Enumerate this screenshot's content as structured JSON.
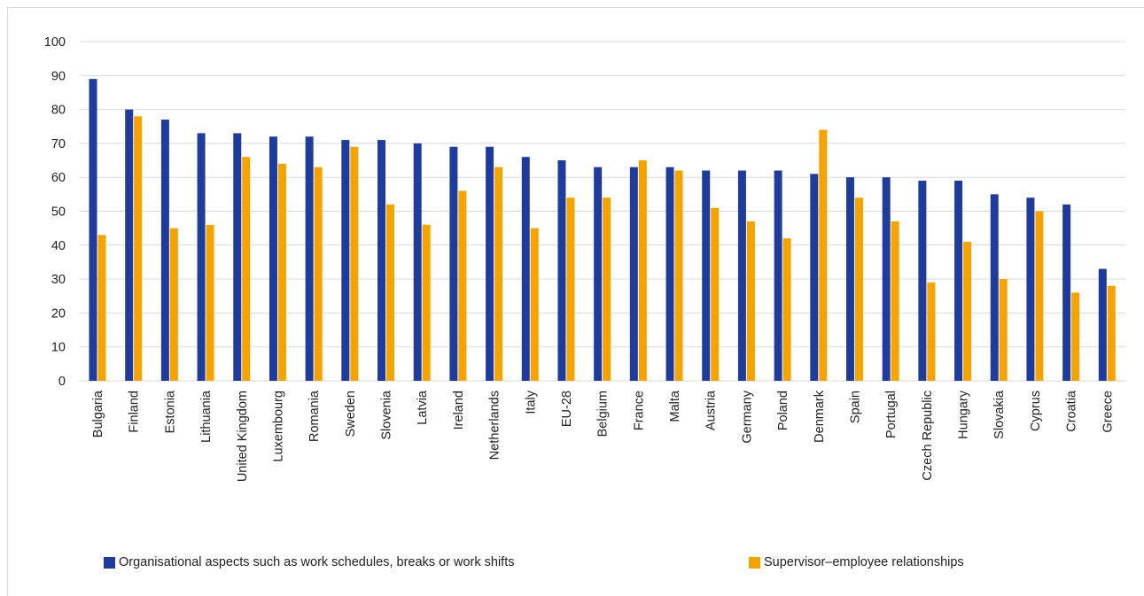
{
  "colors": {
    "series0": "#1f3b9c",
    "series1": "#f5a300",
    "grid": "#d9d9d9",
    "axis_text": "#222222"
  },
  "chart_data": {
    "type": "bar",
    "title": "",
    "xlabel": "",
    "ylabel": "",
    "ylim": [
      0,
      100
    ],
    "yticks": [
      0,
      10,
      20,
      30,
      40,
      50,
      60,
      70,
      80,
      90,
      100
    ],
    "grid": true,
    "legend_position": "bottom",
    "categories": [
      "Bulgaria",
      "Finland",
      "Estonia",
      "Lithuania",
      "United Kingdom",
      "Luxembourg",
      "Romania",
      "Sweden",
      "Slovenia",
      "Latvia",
      "Ireland",
      "Netherlands",
      "Italy",
      "EU-28",
      "Belgium",
      "France",
      "Malta",
      "Austria",
      "Germany",
      "Poland",
      "Denmark",
      "Spain",
      "Portugal",
      "Czech Republic",
      "Hungary",
      "Slovakia",
      "Cyprus",
      "Croatia",
      "Greece"
    ],
    "series": [
      {
        "name": "Organisational aspects such as work schedules, breaks or work shifts",
        "values": [
          89,
          80,
          77,
          73,
          73,
          72,
          72,
          71,
          71,
          70,
          69,
          69,
          66,
          65,
          63,
          63,
          63,
          62,
          62,
          62,
          61,
          60,
          60,
          59,
          59,
          55,
          54,
          52,
          33
        ]
      },
      {
        "name": "Supervisor–employee relationships",
        "values": [
          43,
          78,
          45,
          46,
          66,
          64,
          63,
          69,
          52,
          46,
          56,
          63,
          45,
          54,
          54,
          65,
          62,
          51,
          47,
          42,
          74,
          54,
          47,
          29,
          41,
          30,
          50,
          26,
          28
        ]
      }
    ]
  }
}
